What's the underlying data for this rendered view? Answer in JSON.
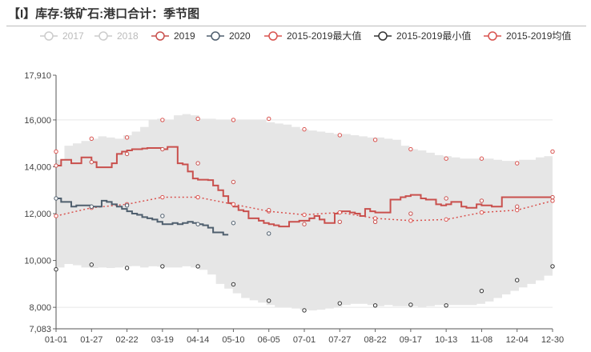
{
  "title": "【I】库存:铁矿石:港口合计：季节图",
  "colors": {
    "band": "#e6e6e6",
    "s2019": "#c9504d",
    "s2020": "#4f5f6e",
    "max": "#d9534f",
    "min": "#333333",
    "avg": "#d9534f",
    "disabled": "#cccccc",
    "text": "#444444",
    "grid": "#e8e8e8"
  },
  "legend": [
    {
      "label": "2017",
      "enabled": false,
      "color": "#cccccc",
      "marker": "circle-line"
    },
    {
      "label": "2018",
      "enabled": false,
      "color": "#cccccc",
      "marker": "circle-line"
    },
    {
      "label": "2019",
      "enabled": true,
      "color": "#c9504d",
      "marker": "circle-line"
    },
    {
      "label": "2020",
      "enabled": true,
      "color": "#4f5f6e",
      "marker": "circle-line"
    },
    {
      "label": "2015-2019最大值",
      "enabled": true,
      "color": "#d9534f",
      "marker": "circle-line"
    },
    {
      "label": "2015-2019最小值",
      "enabled": true,
      "color": "#333333",
      "marker": "circle-line"
    },
    {
      "label": "2015-2019均值",
      "enabled": true,
      "color": "#d9534f",
      "marker": "circle-line"
    }
  ],
  "chart_data": {
    "type": "line",
    "title": "【I】库存:铁矿石:港口合计：季节图",
    "xlabel": "",
    "ylabel": "",
    "categories": [
      "01-01",
      "01-27",
      "02-22",
      "03-19",
      "04-14",
      "05-10",
      "06-05",
      "07-01",
      "07-27",
      "08-22",
      "09-17",
      "10-13",
      "11-08",
      "12-04",
      "12-30"
    ],
    "ylim": [
      7083,
      17910
    ],
    "yticks": [
      7083,
      8000,
      10000,
      12000,
      14000,
      16000,
      17910
    ],
    "ytick_labels": [
      "7,083",
      "8,000",
      "10,000",
      "12,000",
      "14,000",
      "16,000",
      "17,910"
    ],
    "grid": true,
    "legend_position": "top",
    "series": [
      {
        "name": "2015-2019最大值",
        "style": "band-upper-points",
        "values": [
          14650,
          15200,
          15250,
          16000,
          16050,
          16000,
          16050,
          15600,
          15350,
          15150,
          14750,
          14350,
          14350,
          14150,
          14650
        ]
      },
      {
        "name": "2015-2019最小值",
        "style": "band-lower-points",
        "values": [
          9620,
          9820,
          9680,
          9750,
          9750,
          8980,
          8280,
          7870,
          8170,
          8080,
          8110,
          8080,
          8700,
          9160,
          9750
        ]
      },
      {
        "name": "2015-2019均值",
        "style": "dotted",
        "values": [
          11900,
          12250,
          12400,
          12700,
          12700,
          12400,
          12100,
          11950,
          12050,
          11800,
          11700,
          11750,
          12050,
          12150,
          12550
        ]
      },
      {
        "name": "2019",
        "style": "step",
        "x": [
          0,
          1,
          2,
          3,
          4,
          5,
          6,
          7,
          8,
          9,
          10,
          11,
          12,
          13,
          14,
          15,
          16,
          17,
          18,
          19,
          20,
          21,
          22,
          23,
          24,
          25,
          26,
          27,
          28,
          29,
          30,
          31,
          32,
          33,
          34,
          35,
          36,
          37,
          38,
          39,
          40,
          41,
          42,
          43,
          44,
          45,
          46,
          47,
          48,
          49,
          50,
          51,
          52,
          53,
          54,
          55,
          56,
          57,
          58,
          59,
          60,
          61,
          62,
          63,
          64,
          65,
          66,
          67,
          68,
          69,
          70,
          71,
          72,
          73,
          74,
          75,
          76,
          77,
          78,
          79,
          80,
          81,
          82,
          83,
          84,
          85,
          86,
          87,
          88,
          89,
          90,
          91,
          92,
          93,
          94,
          95,
          96,
          97,
          98
        ],
        "values": [
          14050,
          14300,
          14300,
          14150,
          14150,
          14400,
          14400,
          14200,
          13980,
          13980,
          13980,
          14150,
          14550,
          14650,
          14700,
          14750,
          14750,
          14780,
          14800,
          14800,
          14800,
          14750,
          14850,
          14850,
          14150,
          14100,
          13800,
          13500,
          13450,
          13450,
          13430,
          13200,
          13000,
          12750,
          12450,
          12300,
          12150,
          12100,
          11800,
          11800,
          11700,
          11600,
          11550,
          11500,
          11450,
          11450,
          11650,
          11650,
          11700,
          11700,
          11800,
          11900,
          11750,
          11600,
          11600,
          12000,
          12100,
          12100,
          12050,
          12000,
          11900,
          12200,
          12100,
          12050,
          12050,
          12050,
          12600,
          12600,
          12700,
          12750,
          12800,
          12800,
          12650,
          12600,
          12600,
          12400,
          12350,
          12400,
          12500,
          12500,
          12300,
          12250,
          12250,
          12400,
          12350,
          12350,
          12300,
          12300,
          12700,
          12700,
          12700,
          12700,
          12700,
          12700,
          12700,
          12700,
          12700,
          12700,
          12700
        ],
        "markers": [
          [
            0,
            14050
          ],
          [
            7,
            14200
          ],
          [
            14,
            14550
          ],
          [
            21,
            14750
          ],
          [
            28,
            14150
          ],
          [
            35,
            13350
          ],
          [
            42,
            12150
          ],
          [
            49,
            11550
          ],
          [
            56,
            11650
          ],
          [
            63,
            11650
          ],
          [
            70,
            12000
          ],
          [
            77,
            12650
          ],
          [
            84,
            12550
          ],
          [
            91,
            12300
          ],
          [
            98,
            12700
          ]
        ]
      },
      {
        "name": "2020",
        "style": "step",
        "x": [
          0,
          1,
          2,
          3,
          4,
          5,
          6,
          7,
          8,
          9,
          10,
          11,
          12,
          13,
          14,
          15,
          16,
          17,
          18,
          19,
          20,
          21,
          22,
          23,
          24,
          25,
          26,
          27,
          28,
          29,
          30,
          31,
          32,
          33
        ],
        "values": [
          12650,
          12500,
          12500,
          12300,
          12350,
          12350,
          12350,
          12300,
          12300,
          12550,
          12500,
          12400,
          12300,
          12200,
          12100,
          12000,
          11950,
          11850,
          11800,
          11750,
          11650,
          11550,
          11550,
          11600,
          11550,
          11600,
          11650,
          11600,
          11550,
          11500,
          11400,
          11200,
          11200,
          11100
        ],
        "markers": [
          [
            0,
            12650
          ],
          [
            7,
            12300
          ],
          [
            14,
            12350
          ],
          [
            21,
            11900
          ],
          [
            28,
            11550
          ],
          [
            35,
            11600
          ],
          [
            42,
            11150
          ]
        ]
      }
    ],
    "band": {
      "upper": [
        14300,
        14900,
        15000,
        15100,
        15200,
        15300,
        15250,
        15200,
        15350,
        15500,
        15700,
        16000,
        16050,
        16000,
        16200,
        16250,
        16200,
        16050,
        16050,
        16000,
        16000,
        16000,
        16000,
        16000,
        16000,
        15900,
        15850,
        15800,
        15700,
        15600,
        15550,
        15500,
        15450,
        15400,
        15400,
        15350,
        15300,
        15250,
        15250,
        15200,
        15150,
        14900,
        14750,
        14700,
        14600,
        14500,
        14450,
        14400,
        14350,
        14350,
        14350,
        14350,
        14300,
        14250,
        14250,
        14300,
        14300,
        14400,
        14450,
        14650
      ],
      "lower": [
        9700,
        9850,
        9800,
        9700,
        9680,
        9700,
        9680,
        9700,
        9750,
        9760,
        9700,
        9750,
        9740,
        9700,
        9700,
        9750,
        9700,
        9600,
        9400,
        9000,
        8800,
        8600,
        8400,
        8300,
        8200,
        8100,
        8000,
        8000,
        7950,
        7900,
        7870,
        7900,
        7950,
        8000,
        8100,
        8150,
        8150,
        8100,
        8050,
        8100,
        8050,
        8050,
        8050,
        8000,
        8050,
        8100,
        8100,
        8100,
        8100,
        8100,
        8150,
        8250,
        8400,
        8550,
        8700,
        8850,
        9000,
        9150,
        9350,
        9750
      ]
    }
  }
}
